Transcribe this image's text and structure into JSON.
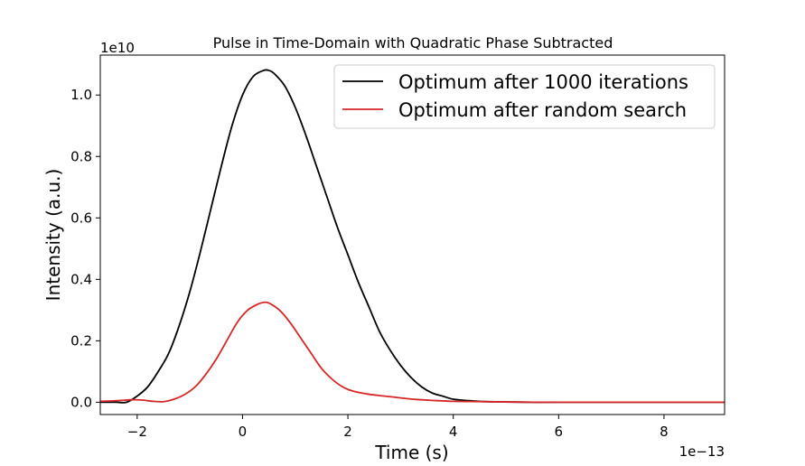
{
  "chart_data": {
    "type": "line",
    "title": "Pulse in Time-Domain with Quadratic Phase Subtracted",
    "xlabel": "Time (s)",
    "ylabel": "Intensity (a.u.)",
    "x_offset_label": "1e−13",
    "y_offset_label": "1e10",
    "xlim": [
      -2.7,
      9.15
    ],
    "ylim": [
      -0.04,
      1.13
    ],
    "xticks": [
      -2,
      0,
      2,
      4,
      6,
      8
    ],
    "xtick_labels": [
      "−2",
      "0",
      "2",
      "4",
      "6",
      "8"
    ],
    "yticks": [
      0.0,
      0.2,
      0.4,
      0.6,
      0.8,
      1.0
    ],
    "ytick_labels": [
      "0.0",
      "0.2",
      "0.4",
      "0.6",
      "0.8",
      "1.0"
    ],
    "grid": false,
    "legend_position": "top-right",
    "series": [
      {
        "name": "Optimum after 1000 iterations",
        "color": "#000000",
        "x": [
          -2.7,
          -2.4,
          -2.2,
          -2.0,
          -1.8,
          -1.6,
          -1.4,
          -1.2,
          -1.0,
          -0.8,
          -0.6,
          -0.4,
          -0.2,
          0.0,
          0.2,
          0.4,
          0.5,
          0.6,
          0.8,
          1.0,
          1.2,
          1.4,
          1.6,
          1.8,
          2.0,
          2.2,
          2.4,
          2.6,
          2.8,
          3.0,
          3.2,
          3.4,
          3.6,
          3.8,
          4.0,
          4.3,
          4.6,
          5.0,
          5.5,
          6.0,
          7.0,
          8.0,
          9.15
        ],
        "y": [
          0.0,
          0.0,
          0.0,
          0.02,
          0.05,
          0.1,
          0.16,
          0.25,
          0.36,
          0.49,
          0.63,
          0.77,
          0.9,
          1.0,
          1.06,
          1.08,
          1.08,
          1.07,
          1.03,
          0.96,
          0.87,
          0.77,
          0.67,
          0.57,
          0.48,
          0.39,
          0.31,
          0.23,
          0.17,
          0.12,
          0.08,
          0.05,
          0.03,
          0.02,
          0.01,
          0.005,
          0.002,
          0.001,
          0.0,
          0.0,
          0.0,
          0.0,
          0.0
        ]
      },
      {
        "name": "Optimum after random search",
        "color": "#d62728",
        "x": [
          -2.7,
          -2.4,
          -2.1,
          -1.9,
          -1.7,
          -1.5,
          -1.3,
          -1.1,
          -0.9,
          -0.7,
          -0.5,
          -0.3,
          -0.1,
          0.1,
          0.3,
          0.4,
          0.5,
          0.7,
          0.9,
          1.1,
          1.3,
          1.5,
          1.7,
          1.9,
          2.1,
          2.4,
          2.7,
          3.0,
          3.3,
          3.6,
          4.0,
          4.5,
          5.0,
          5.5,
          6.0,
          7.0,
          8.0,
          9.15
        ],
        "y": [
          0.003,
          0.005,
          0.008,
          0.007,
          0.003,
          0.002,
          0.01,
          0.025,
          0.05,
          0.09,
          0.14,
          0.2,
          0.26,
          0.3,
          0.32,
          0.325,
          0.323,
          0.3,
          0.26,
          0.21,
          0.16,
          0.11,
          0.075,
          0.05,
          0.036,
          0.026,
          0.02,
          0.014,
          0.009,
          0.006,
          0.003,
          0.002,
          0.001,
          0.0,
          0.0,
          0.0,
          0.0,
          0.0
        ]
      }
    ]
  }
}
